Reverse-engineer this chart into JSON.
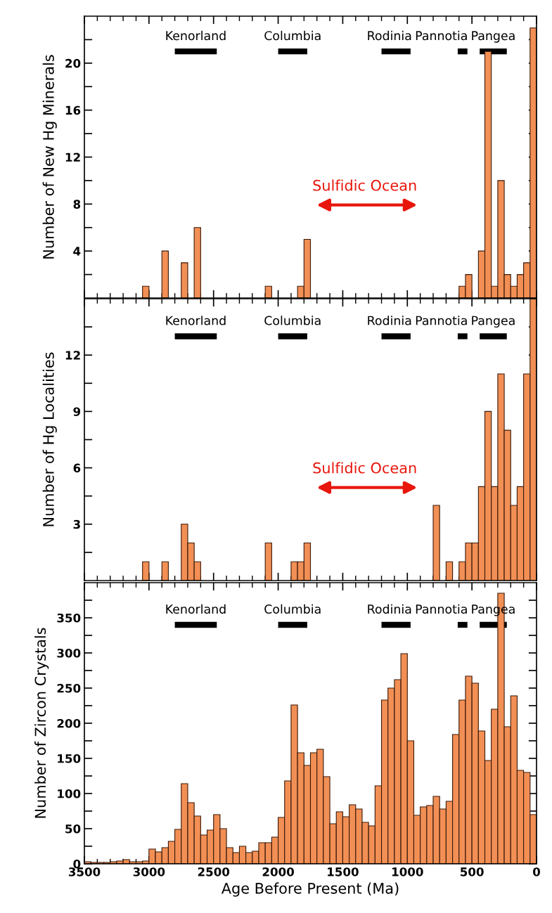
{
  "chart_data": [
    {
      "type": "histogram",
      "ylabel": "Number of New Hg Minerals",
      "color": "#f28f55",
      "bins": [
        3500,
        3450,
        3400,
        3350,
        3300,
        3250,
        3200,
        3150,
        3100,
        3050,
        3000,
        2950,
        2900,
        2850,
        2800,
        2750,
        2700,
        2650,
        2600,
        2550,
        2500,
        2450,
        2400,
        2350,
        2300,
        2250,
        2200,
        2150,
        2100,
        2050,
        2000,
        1950,
        1900,
        1850,
        1800,
        1750,
        1700,
        1650,
        1600,
        1550,
        1500,
        1450,
        1400,
        1350,
        1300,
        1250,
        1200,
        1150,
        1100,
        1050,
        1000,
        950,
        900,
        850,
        800,
        750,
        700,
        650,
        600,
        550,
        500,
        450,
        400,
        350,
        300,
        250,
        200,
        150,
        100,
        50,
        0
      ],
      "values": [
        null,
        null,
        null,
        null,
        null,
        null,
        null,
        null,
        null,
        1,
        null,
        null,
        4,
        null,
        null,
        3,
        null,
        6,
        null,
        null,
        null,
        null,
        null,
        null,
        null,
        null,
        null,
        null,
        1,
        null,
        null,
        null,
        null,
        1,
        5,
        null,
        null,
        null,
        null,
        null,
        null,
        null,
        null,
        null,
        null,
        null,
        null,
        null,
        null,
        null,
        null,
        null,
        null,
        null,
        null,
        null,
        null,
        null,
        1,
        2,
        null,
        4,
        21,
        1,
        10,
        2,
        1,
        2,
        3,
        23
      ],
      "annotations": [
        "Sulfidic Ocean"
      ],
      "xlim": [
        3500,
        0
      ],
      "ylim": [
        0,
        24
      ],
      "xticks": [
        {
          "value": 3500,
          "label": null
        },
        {
          "value": 3000,
          "label": null
        },
        {
          "value": 2500,
          "label": null
        },
        {
          "value": 2000,
          "label": null
        },
        {
          "value": 1500,
          "label": null
        },
        {
          "value": 1000,
          "label": null
        },
        {
          "value": 500,
          "label": null
        },
        {
          "value": 0,
          "label": null
        }
      ],
      "yticks": [
        {
          "value": 2,
          "label": null
        },
        4,
        {
          "value": 6,
          "label": null
        },
        8,
        {
          "value": 10,
          "label": null
        },
        12,
        {
          "value": 14,
          "label": null
        },
        16,
        {
          "value": 18,
          "label": null
        },
        20,
        {
          "value": 22,
          "label": null
        }
      ],
      "tick_labels": "y",
      "legend": "top",
      "series": [
        {
          "type": "line",
          "name": "Kenorland",
          "color": "#000000",
          "x": [
            2800,
            2475
          ],
          "values": [
            21,
            21
          ]
        },
        {
          "type": "line",
          "name": "Columbia",
          "color": "#000000",
          "x": [
            2000,
            1775
          ],
          "values": [
            21,
            21
          ]
        },
        {
          "type": "line",
          "name": "Rodinia",
          "color": "#000000",
          "x": [
            1200,
            975
          ],
          "values": [
            21,
            21
          ]
        },
        {
          "type": "line",
          "name": "Pannotia",
          "color": "#000000",
          "x": [
            610,
            535
          ],
          "values": [
            21,
            21
          ]
        },
        {
          "type": "line",
          "name": "Pangea",
          "color": "#000000",
          "x": [
            440,
            230
          ],
          "values": [
            21,
            21
          ]
        }
      ]
    },
    {
      "type": "histogram",
      "ylabel": "Number of Hg Localities",
      "color": "#f28f55",
      "bins": [
        3500,
        3450,
        3400,
        3350,
        3300,
        3250,
        3200,
        3150,
        3100,
        3050,
        3000,
        2950,
        2900,
        2850,
        2800,
        2750,
        2700,
        2650,
        2600,
        2550,
        2500,
        2450,
        2400,
        2350,
        2300,
        2250,
        2200,
        2150,
        2100,
        2050,
        2000,
        1950,
        1900,
        1850,
        1800,
        1750,
        1700,
        1650,
        1600,
        1550,
        1500,
        1450,
        1400,
        1350,
        1300,
        1250,
        1200,
        1150,
        1100,
        1050,
        1000,
        950,
        900,
        850,
        800,
        750,
        700,
        650,
        600,
        550,
        500,
        450,
        400,
        350,
        300,
        250,
        200,
        150,
        100,
        50,
        0
      ],
      "values": [
        null,
        null,
        null,
        null,
        null,
        null,
        null,
        null,
        null,
        1,
        null,
        null,
        1,
        null,
        null,
        3,
        2,
        1,
        null,
        null,
        null,
        null,
        null,
        null,
        null,
        null,
        null,
        null,
        2,
        null,
        null,
        null,
        1,
        1,
        2,
        null,
        null,
        null,
        null,
        null,
        null,
        null,
        null,
        null,
        null,
        null,
        null,
        null,
        null,
        null,
        null,
        null,
        null,
        null,
        4,
        null,
        1,
        null,
        1,
        2,
        2,
        5,
        9,
        5,
        11,
        8,
        4,
        5,
        11,
        15
      ],
      "annotations": [
        "Sulfidic Ocean"
      ],
      "xlim": [
        3500,
        0
      ],
      "ylim": [
        0,
        15
      ],
      "xticks": [
        {
          "value": 3500,
          "label": null
        },
        {
          "value": 3000,
          "label": null
        },
        {
          "value": 2500,
          "label": null
        },
        {
          "value": 2000,
          "label": null
        },
        {
          "value": 1500,
          "label": null
        },
        {
          "value": 1000,
          "label": null
        },
        {
          "value": 500,
          "label": null
        },
        {
          "value": 0,
          "label": null
        }
      ],
      "yticks": [
        {
          "value": 1.5,
          "label": null
        },
        3,
        {
          "value": 4.5,
          "label": null
        },
        6,
        {
          "value": 7.5,
          "label": null
        },
        9,
        {
          "value": 10.5,
          "label": null
        },
        12,
        {
          "value": 13.5,
          "label": null
        }
      ],
      "tick_labels": "y",
      "legend": "top",
      "series": [
        {
          "type": "line",
          "name": "Kenorland",
          "color": "#000000",
          "x": [
            2800,
            2475
          ],
          "values": [
            13,
            13
          ]
        },
        {
          "type": "line",
          "name": "Columbia",
          "color": "#000000",
          "x": [
            2000,
            1775
          ],
          "values": [
            13,
            13
          ]
        },
        {
          "type": "line",
          "name": "Rodinia",
          "color": "#000000",
          "x": [
            1200,
            975
          ],
          "values": [
            13,
            13
          ]
        },
        {
          "type": "line",
          "name": "Pannotia",
          "color": "#000000",
          "x": [
            610,
            535
          ],
          "values": [
            13,
            13
          ]
        },
        {
          "type": "line",
          "name": "Pangea",
          "color": "#000000",
          "x": [
            440,
            230
          ],
          "values": [
            13,
            13
          ]
        }
      ]
    },
    {
      "type": "histogram",
      "ylabel": "Number of Zircon Crystals",
      "xlabel": "Age Before Present (Ma)",
      "color": "#f28f55",
      "bins": [
        3500,
        3450,
        3400,
        3350,
        3300,
        3250,
        3200,
        3150,
        3100,
        3050,
        3000,
        2950,
        2900,
        2850,
        2800,
        2750,
        2700,
        2650,
        2600,
        2550,
        2500,
        2450,
        2400,
        2350,
        2300,
        2250,
        2200,
        2150,
        2100,
        2050,
        2000,
        1950,
        1900,
        1850,
        1800,
        1750,
        1700,
        1650,
        1600,
        1550,
        1500,
        1450,
        1400,
        1350,
        1300,
        1250,
        1200,
        1150,
        1100,
        1050,
        1000,
        950,
        900,
        850,
        800,
        750,
        700,
        650,
        600,
        550,
        500,
        450,
        400,
        350,
        300,
        250,
        200,
        150,
        100,
        50,
        0
      ],
      "values": [
        3,
        2,
        2,
        2,
        3,
        4,
        6,
        3,
        3,
        4,
        21,
        17,
        23,
        32,
        49,
        114,
        87,
        68,
        41,
        48,
        70,
        50,
        23,
        16,
        25,
        16,
        18,
        30,
        30,
        38,
        66,
        118,
        226,
        158,
        140,
        158,
        163,
        124,
        57,
        74,
        67,
        84,
        78,
        59,
        54,
        111,
        233,
        250,
        262,
        299,
        175,
        69,
        81,
        83,
        96,
        78,
        89,
        184,
        233,
        267,
        257,
        189,
        147,
        220,
        385,
        195,
        239,
        133,
        130,
        70
      ],
      "xlim": [
        3500,
        0
      ],
      "ylim": [
        0,
        400
      ],
      "xticks": [
        3500,
        3000,
        2500,
        2000,
        1500,
        1000,
        500,
        0
      ],
      "yticks": [
        0,
        {
          "value": 25,
          "label": null
        },
        50,
        {
          "value": 75,
          "label": null
        },
        100,
        {
          "value": 125,
          "label": null
        },
        150,
        {
          "value": 175,
          "label": null
        },
        200,
        {
          "value": 225,
          "label": null
        },
        250,
        {
          "value": 275,
          "label": null
        },
        300,
        {
          "value": 325,
          "label": null
        },
        350,
        {
          "value": 375,
          "label": null
        }
      ],
      "legend": "top",
      "series": [
        {
          "type": "line",
          "name": "Kenorland",
          "color": "#000000",
          "x": [
            2800,
            2475
          ],
          "values": [
            340,
            340
          ]
        },
        {
          "type": "line",
          "name": "Columbia",
          "color": "#000000",
          "x": [
            2000,
            1775
          ],
          "values": [
            340,
            340
          ]
        },
        {
          "type": "line",
          "name": "Rodinia",
          "color": "#000000",
          "x": [
            1200,
            975
          ],
          "values": [
            340,
            340
          ]
        },
        {
          "type": "line",
          "name": "Pannotia",
          "color": "#000000",
          "x": [
            610,
            535
          ],
          "values": [
            340,
            340
          ]
        },
        {
          "type": "line",
          "name": "Pangea",
          "color": "#000000",
          "x": [
            440,
            230
          ],
          "values": [
            340,
            340
          ]
        }
      ]
    }
  ]
}
